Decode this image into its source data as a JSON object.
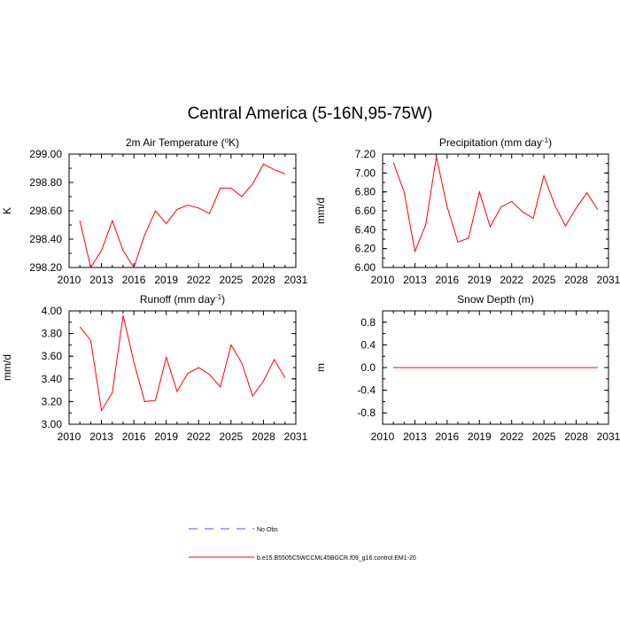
{
  "title": "Central America (5-16N,95-75W)",
  "legend": [
    {
      "label": "No Obs",
      "color": "#5050ff",
      "dashed": true
    },
    {
      "label": "b.e15.B5505C5WCCML45BGCR.f09_g16.control.EM1-20",
      "color": "#ff0000",
      "dashed": false
    }
  ],
  "chart_data": [
    {
      "type": "line",
      "title_main": "2m Air Temperature (",
      "title_sup": "o",
      "title_end": "K)",
      "ylabel": "K",
      "xlim": [
        2010,
        2031
      ],
      "ylim": [
        298.2,
        299.0
      ],
      "xticks": [
        2010,
        2013,
        2016,
        2019,
        2022,
        2025,
        2028,
        2031
      ],
      "yticks": [
        298.2,
        298.4,
        298.6,
        298.8,
        299.0
      ],
      "ytick_labels": [
        "298.20",
        "298.40",
        "298.60",
        "298.80",
        "299.00"
      ],
      "x": [
        2011,
        2012,
        2013,
        2014,
        2015,
        2016,
        2017,
        2018,
        2019,
        2020,
        2021,
        2022,
        2023,
        2024,
        2025,
        2026,
        2027,
        2028,
        2029,
        2030
      ],
      "series": [
        {
          "name": "b.e15.B5505C5WCCML45BGCR.f09_g16.control.EM1-20",
          "color": "#ff0000",
          "values": [
            298.53,
            298.2,
            298.32,
            298.53,
            298.32,
            298.2,
            298.43,
            298.6,
            298.51,
            298.61,
            298.64,
            298.62,
            298.58,
            298.76,
            298.76,
            298.7,
            298.79,
            298.93,
            298.89,
            298.86
          ]
        }
      ]
    },
    {
      "type": "line",
      "title_main": "Precipitation (mm day",
      "title_sup": "-1",
      "title_end": ")",
      "ylabel": "mm/d",
      "xlim": [
        2010,
        2031
      ],
      "ylim": [
        6.0,
        7.2
      ],
      "xticks": [
        2010,
        2013,
        2016,
        2019,
        2022,
        2025,
        2028,
        2031
      ],
      "yticks": [
        6.0,
        6.2,
        6.4,
        6.6,
        6.8,
        7.0,
        7.2
      ],
      "ytick_labels": [
        "6.00",
        "6.20",
        "6.40",
        "6.60",
        "6.80",
        "7.00",
        "7.20"
      ],
      "x": [
        2011,
        2012,
        2013,
        2014,
        2015,
        2016,
        2017,
        2018,
        2019,
        2020,
        2021,
        2022,
        2023,
        2024,
        2025,
        2026,
        2027,
        2028,
        2029,
        2030
      ],
      "series": [
        {
          "name": "b.e15.B5505C5WCCML45BGCR.f09_g16.control.EM1-20",
          "color": "#ff0000",
          "values": [
            7.11,
            6.8,
            6.17,
            6.45,
            7.17,
            6.64,
            6.27,
            6.31,
            6.8,
            6.43,
            6.64,
            6.7,
            6.59,
            6.52,
            6.97,
            6.66,
            6.44,
            6.63,
            6.79,
            6.61
          ]
        }
      ]
    },
    {
      "type": "line",
      "title_main": "Runoff (mm day",
      "title_sup": "-1",
      "title_end": ")",
      "ylabel": "mm/d",
      "xlim": [
        2010,
        2031
      ],
      "ylim": [
        3.0,
        4.0
      ],
      "xticks": [
        2010,
        2013,
        2016,
        2019,
        2022,
        2025,
        2028,
        2031
      ],
      "yticks": [
        3.0,
        3.2,
        3.4,
        3.6,
        3.8,
        4.0
      ],
      "ytick_labels": [
        "3.00",
        "3.20",
        "3.40",
        "3.60",
        "3.80",
        "4.00"
      ],
      "x": [
        2011,
        2012,
        2013,
        2014,
        2015,
        2016,
        2017,
        2018,
        2019,
        2020,
        2021,
        2022,
        2023,
        2024,
        2025,
        2026,
        2027,
        2028,
        2029,
        2030
      ],
      "series": [
        {
          "name": "b.e15.B5505C5WCCML45BGCR.f09_g16.control.EM1-20",
          "color": "#ff0000",
          "values": [
            3.86,
            3.74,
            3.12,
            3.28,
            3.96,
            3.55,
            3.2,
            3.21,
            3.59,
            3.29,
            3.45,
            3.5,
            3.44,
            3.33,
            3.7,
            3.54,
            3.25,
            3.38,
            3.57,
            3.41
          ]
        }
      ]
    },
    {
      "type": "line",
      "title_main": "Snow Depth (m)",
      "title_sup": "",
      "title_end": "",
      "ylabel": "m",
      "xlim": [
        2010,
        2031
      ],
      "ylim": [
        -1.0,
        1.0
      ],
      "xticks": [
        2010,
        2013,
        2016,
        2019,
        2022,
        2025,
        2028,
        2031
      ],
      "yticks": [
        -0.8,
        -0.4,
        0.0,
        0.4,
        0.8
      ],
      "ytick_labels": [
        "-0.8",
        "-0.4",
        "0.0",
        "0.4",
        "0.8"
      ],
      "x": [
        2011,
        2012,
        2013,
        2014,
        2015,
        2016,
        2017,
        2018,
        2019,
        2020,
        2021,
        2022,
        2023,
        2024,
        2025,
        2026,
        2027,
        2028,
        2029,
        2030
      ],
      "series": [
        {
          "name": "b.e15.B5505C5WCCML45BGCR.f09_g16.control.EM1-20",
          "color": "#ff0000",
          "values": [
            0,
            0,
            0,
            0,
            0,
            0,
            0,
            0,
            0,
            0,
            0,
            0,
            0,
            0,
            0,
            0,
            0,
            0,
            0,
            0
          ]
        }
      ]
    }
  ]
}
